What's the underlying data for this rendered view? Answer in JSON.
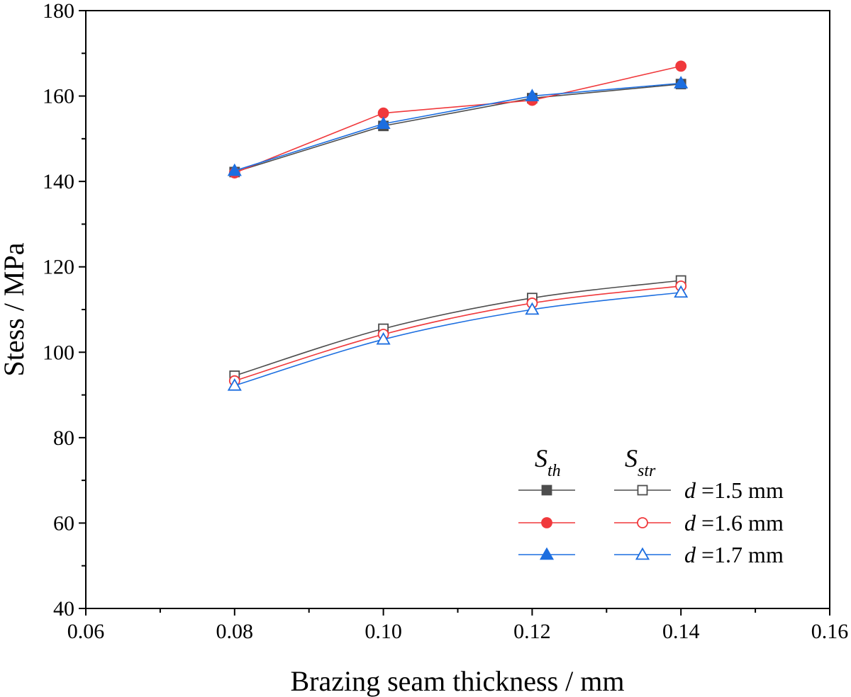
{
  "chart_data": {
    "type": "line",
    "title": "",
    "xlabel": "Brazing seam thickness / mm",
    "ylabel": "Stess / MPa",
    "xlim": [
      0.06,
      0.16
    ],
    "ylim": [
      40,
      180
    ],
    "x_ticks": [
      "0.06",
      "0.08",
      "0.10",
      "0.12",
      "0.14",
      "0.16"
    ],
    "y_ticks": [
      "40",
      "60",
      "80",
      "100",
      "120",
      "140",
      "160",
      "180"
    ],
    "x": [
      0.08,
      0.1,
      0.12,
      0.14
    ],
    "grid": false,
    "legend_position": "bottom-right",
    "legend": {
      "th_base": "S",
      "th_sub": "th",
      "str_base": "S",
      "str_sub": "str",
      "row_labels": [
        {
          "prefix": "d",
          "text": " =1.5 mm"
        },
        {
          "prefix": "d",
          "text": " =1.6 mm"
        },
        {
          "prefix": "d",
          "text": " =1.7 mm"
        }
      ]
    },
    "series": [
      {
        "group": "th",
        "d": "1.5",
        "marker": "square",
        "filled": true,
        "color": "#4d4d4d",
        "values": [
          142.2,
          153.0,
          159.5,
          162.8
        ]
      },
      {
        "group": "th",
        "d": "1.6",
        "marker": "circle",
        "filled": true,
        "color": "#f0393c",
        "values": [
          142.0,
          156.0,
          159.0,
          167.0
        ]
      },
      {
        "group": "th",
        "d": "1.7",
        "marker": "triangle",
        "filled": true,
        "color": "#1c6ee0",
        "values": [
          142.5,
          153.5,
          160.0,
          163.0
        ]
      },
      {
        "group": "str",
        "d": "1.5",
        "marker": "square",
        "filled": false,
        "color": "#4d4d4d",
        "values": [
          94.5,
          105.5,
          112.7,
          116.8
        ]
      },
      {
        "group": "str",
        "d": "1.6",
        "marker": "circle",
        "filled": false,
        "color": "#f0393c",
        "values": [
          93.3,
          104.2,
          111.5,
          115.5
        ]
      },
      {
        "group": "str",
        "d": "1.7",
        "marker": "triangle",
        "filled": false,
        "color": "#1c6ee0",
        "values": [
          92.2,
          103.0,
          110.0,
          114.0
        ]
      }
    ]
  }
}
